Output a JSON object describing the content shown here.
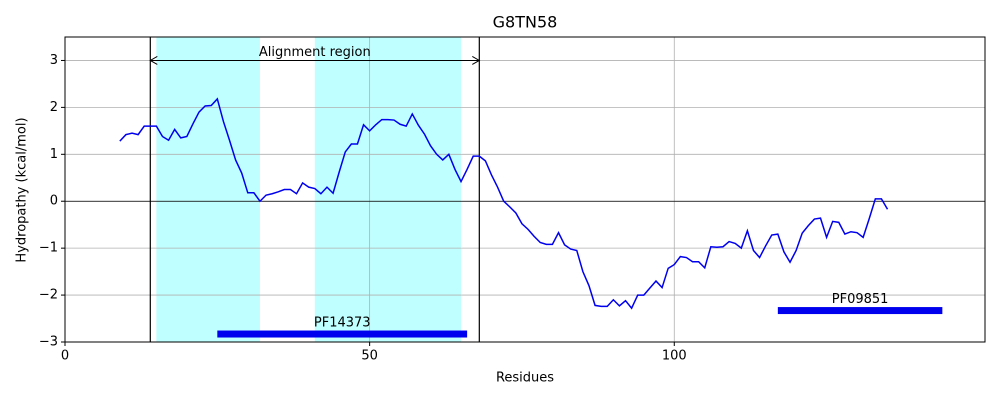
{
  "chart_data": {
    "type": "line",
    "title": "G8TN58",
    "x_label": "Residues",
    "y_label": "Hydropathy (kcal/mol)",
    "x": [
      9,
      10,
      11,
      12,
      13,
      14,
      15,
      16,
      17,
      18,
      19,
      20,
      21,
      22,
      23,
      24,
      25,
      26,
      27,
      28,
      29,
      30,
      31,
      32,
      33,
      34,
      35,
      36,
      37,
      38,
      39,
      40,
      41,
      42,
      43,
      44,
      45,
      46,
      47,
      48,
      49,
      50,
      51,
      52,
      53,
      54,
      55,
      56,
      57,
      58,
      59,
      60,
      61,
      62,
      63,
      64,
      65,
      66,
      67,
      68,
      69,
      70,
      71,
      72,
      73,
      74,
      75,
      76,
      77,
      78,
      79,
      80,
      81,
      82,
      83,
      84,
      85,
      86,
      87,
      88,
      89,
      90,
      91,
      92,
      93,
      94,
      95,
      96,
      97,
      98,
      99,
      100,
      101,
      102,
      103,
      104,
      105,
      106,
      107,
      108,
      109,
      110,
      111,
      112,
      113,
      114,
      115,
      116,
      117,
      118,
      119,
      120,
      121,
      122,
      123,
      124,
      125,
      126,
      127,
      128,
      129,
      130,
      131,
      132,
      133,
      134,
      135
    ],
    "series": [
      {
        "color": "#0000ee",
        "values": [
          1.28,
          1.42,
          1.45,
          1.42,
          1.6,
          1.6,
          1.6,
          1.38,
          1.3,
          1.53,
          1.35,
          1.38,
          1.65,
          1.9,
          2.03,
          2.04,
          2.18,
          1.7,
          1.3,
          0.88,
          0.6,
          0.18,
          0.18,
          0.0,
          0.13,
          0.16,
          0.2,
          0.25,
          0.25,
          0.16,
          0.39,
          0.3,
          0.27,
          0.16,
          0.3,
          0.17,
          0.62,
          1.05,
          1.22,
          1.22,
          1.63,
          1.5,
          1.63,
          1.74,
          1.74,
          1.73,
          1.64,
          1.6,
          1.86,
          1.62,
          1.43,
          1.18,
          1.0,
          0.88,
          1.0,
          0.68,
          0.42,
          0.68,
          0.96,
          0.96,
          0.86,
          0.56,
          0.3,
          0.0,
          -0.12,
          -0.25,
          -0.48,
          -0.6,
          -0.75,
          -0.88,
          -0.92,
          -0.92,
          -0.67,
          -0.93,
          -1.02,
          -1.05,
          -1.5,
          -1.8,
          -2.22,
          -2.24,
          -2.24,
          -2.1,
          -2.23,
          -2.12,
          -2.28,
          -2.0,
          -2.0,
          -1.85,
          -1.7,
          -1.84,
          -1.43,
          -1.35,
          -1.18,
          -1.2,
          -1.29,
          -1.29,
          -1.42,
          -0.97,
          -0.98,
          -0.97,
          -0.86,
          -0.9,
          -1.0,
          -0.63,
          -1.05,
          -1.2,
          -0.95,
          -0.72,
          -0.7,
          -1.08,
          -1.3,
          -1.05,
          -0.68,
          -0.52,
          -0.38,
          -0.36,
          -0.77,
          -0.43,
          -0.45,
          -0.7,
          -0.65,
          -0.67,
          -0.77,
          -0.37,
          0.05,
          0.05,
          -0.17
        ]
      }
    ],
    "xlim": [
      0,
      151
    ],
    "ylim": [
      -3,
      3.5
    ],
    "xticks": [
      0,
      50,
      100
    ],
    "yticks": [
      {
        "value": -3,
        "label": "−3"
      },
      {
        "value": -2,
        "label": "−2"
      },
      {
        "value": -1,
        "label": "−1"
      },
      0,
      1,
      2,
      3
    ],
    "grid": true,
    "hline": 0,
    "spans": [
      {
        "start": 15,
        "end": 32,
        "color": "#c0ffff"
      },
      {
        "start": 41,
        "end": 65,
        "color": "#c0ffff"
      }
    ],
    "alignment": {
      "label": "Alignment region",
      "start": 14,
      "end": 68,
      "y": 3
    },
    "domains": [
      {
        "name": "PF14373",
        "start": 25,
        "end": 66,
        "y": -2.83,
        "color": "#0000ee"
      },
      {
        "name": "PF09851",
        "start": 117,
        "end": 144,
        "y": -2.33,
        "color": "#0000ee"
      }
    ]
  }
}
